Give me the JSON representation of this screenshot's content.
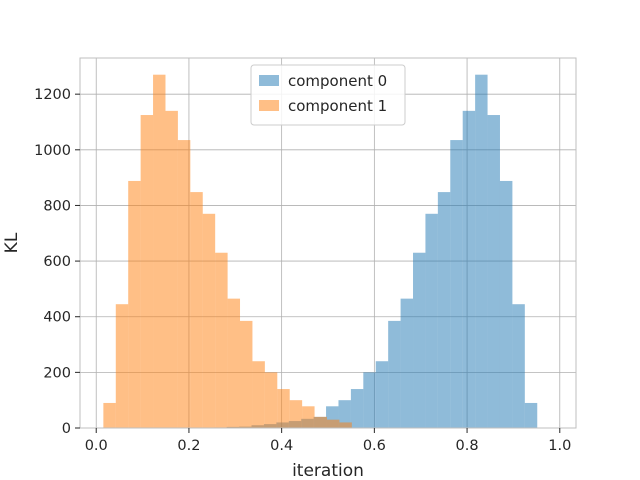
{
  "chart_data": {
    "type": "bar",
    "subtype": "overlapping-histogram",
    "title": "",
    "xlabel": "iteration",
    "ylabel": "KL",
    "xlim": [
      -0.035,
      1.035
    ],
    "ylim": [
      0,
      1330
    ],
    "xticks": [
      0.0,
      0.2,
      0.4,
      0.6,
      0.8,
      1.0
    ],
    "xtick_labels": [
      "0.0",
      "0.2",
      "0.4",
      "0.6",
      "0.8",
      "1.0"
    ],
    "yticks": [
      0,
      200,
      400,
      600,
      800,
      1000,
      1200
    ],
    "ytick_labels": [
      "0",
      "200",
      "400",
      "600",
      "800",
      "1000",
      "1200"
    ],
    "grid": true,
    "legend_position": "top-center",
    "bin_width": 0.0268,
    "series": [
      {
        "name": "component 0",
        "color": "#1f77b4",
        "opacity": 0.5,
        "bin_starts": [
          0.2546,
          0.2814,
          0.3082,
          0.335,
          0.3618,
          0.3886,
          0.4154,
          0.4422,
          0.469,
          0.4958,
          0.5226,
          0.5494,
          0.5762,
          0.603,
          0.6298,
          0.6566,
          0.6834,
          0.7102,
          0.737,
          0.7638,
          0.7906,
          0.8174,
          0.8442,
          0.871,
          0.8978,
          0.9246,
          0.9514
        ],
        "values": [
          2,
          4,
          5,
          10,
          14,
          20,
          25,
          33,
          40,
          78,
          100,
          140,
          200,
          240,
          385,
          465,
          630,
          770,
          848,
          1035,
          1140,
          1270,
          1125,
          888,
          445,
          90,
          0
        ]
      },
      {
        "name": "component 1",
        "color": "#ff7f0e",
        "opacity": 0.5,
        "bin_starts": [
          0.0154,
          0.0422,
          0.069,
          0.0958,
          0.1226,
          0.1494,
          0.1762,
          0.203,
          0.2298,
          0.2566,
          0.2834,
          0.3102,
          0.337,
          0.3638,
          0.3906,
          0.4174,
          0.4442,
          0.471,
          0.4978,
          0.5246
        ],
        "values": [
          90,
          445,
          888,
          1125,
          1270,
          1140,
          1035,
          848,
          770,
          630,
          465,
          385,
          240,
          200,
          140,
          100,
          78,
          40,
          30,
          20
        ]
      }
    ]
  }
}
